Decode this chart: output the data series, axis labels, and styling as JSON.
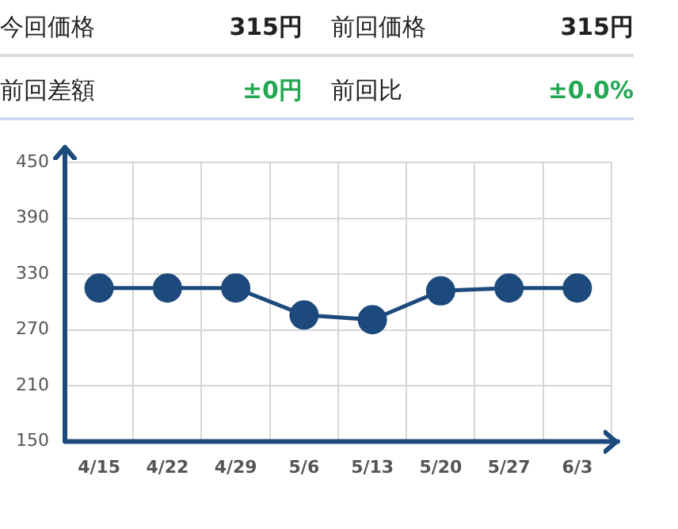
{
  "chart_data": [
    {
      "type": "other",
      "annotations": [
        "今回価格",
        "315円",
        "前回価格",
        "315円",
        "前回差額",
        "±0円",
        "前回比",
        "±0.0%"
      ]
    },
    {
      "type": "line",
      "categories": [
        "4/15",
        "4/22",
        "4/29",
        "5/6",
        "5/13",
        "5/20",
        "5/27",
        "6/3"
      ],
      "series": [
        {
          "color": "#1d4a7c",
          "values": [
            315,
            315,
            315,
            286,
            281,
            312,
            315,
            315
          ]
        }
      ],
      "ylim": [
        150,
        450
      ],
      "yticks": [
        150,
        210,
        270,
        330,
        390,
        450
      ],
      "grid": true,
      "marker": "circle",
      "line_style": "solid"
    }
  ]
}
